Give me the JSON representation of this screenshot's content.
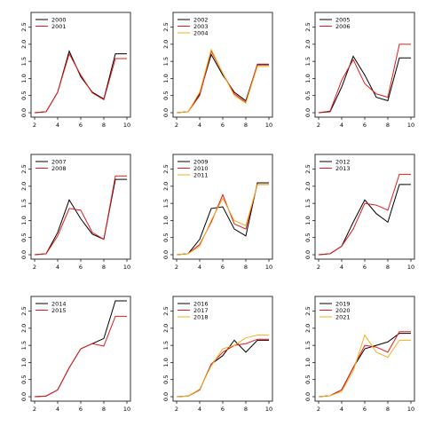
{
  "colors": {
    "black": "#000000",
    "red": "#e41a1c",
    "orange": "#f0b020",
    "axis": "#000000"
  },
  "chart_data": [
    {
      "type": "line",
      "xlim": [
        2,
        10
      ],
      "ylim": [
        0,
        2.8
      ],
      "xticks": [
        "2",
        "4",
        "6",
        "8",
        "10"
      ],
      "yticks": [
        "0.0",
        "0.5",
        "1.0",
        "1.5",
        "2.0",
        "2.5"
      ],
      "legend": "top-left",
      "x": [
        2,
        3,
        4,
        5,
        6,
        7,
        8,
        9,
        10
      ],
      "series": [
        {
          "name": "2000",
          "color": "black",
          "values": [
            0,
            0.03,
            0.6,
            1.8,
            1.05,
            0.6,
            0.4,
            1.72,
            1.72
          ]
        },
        {
          "name": "2001",
          "color": "red",
          "values": [
            0,
            0.03,
            0.6,
            1.72,
            1.1,
            0.58,
            0.38,
            1.58,
            1.58
          ]
        }
      ]
    },
    {
      "type": "line",
      "xlim": [
        2,
        10
      ],
      "ylim": [
        0,
        2.8
      ],
      "xticks": [
        "2",
        "4",
        "6",
        "8",
        "10"
      ],
      "yticks": [
        "0.0",
        "0.5",
        "1.0",
        "1.5",
        "2.0",
        "2.5"
      ],
      "legend": "top-left",
      "x": [
        2,
        3,
        4,
        5,
        6,
        7,
        8,
        9,
        10
      ],
      "series": [
        {
          "name": "2002",
          "color": "black",
          "values": [
            0,
            0.03,
            0.55,
            1.7,
            1.1,
            0.6,
            0.35,
            1.4,
            1.4
          ]
        },
        {
          "name": "2003",
          "color": "red",
          "values": [
            0,
            0.03,
            0.5,
            1.8,
            1.15,
            0.55,
            0.3,
            1.42,
            1.42
          ]
        },
        {
          "name": "2004",
          "color": "orange",
          "values": [
            0,
            0.03,
            0.6,
            1.85,
            1.15,
            0.5,
            0.28,
            1.35,
            1.35
          ]
        }
      ]
    },
    {
      "type": "line",
      "xlim": [
        2,
        10
      ],
      "ylim": [
        0,
        2.8
      ],
      "xticks": [
        "2",
        "4",
        "6",
        "8",
        "10"
      ],
      "yticks": [
        "0.0",
        "0.5",
        "1.0",
        "1.5",
        "2.0",
        "2.5"
      ],
      "legend": "top-left",
      "x": [
        2,
        3,
        4,
        5,
        6,
        7,
        8,
        9,
        10
      ],
      "series": [
        {
          "name": "2005",
          "color": "black",
          "values": [
            0,
            0.03,
            0.75,
            1.65,
            1.1,
            0.45,
            0.35,
            1.6,
            1.6
          ]
        },
        {
          "name": "2006",
          "color": "red",
          "values": [
            0,
            0.05,
            0.95,
            1.55,
            0.85,
            0.55,
            0.45,
            2.0,
            2.0
          ]
        }
      ]
    },
    {
      "type": "line",
      "xlim": [
        2,
        10
      ],
      "ylim": [
        0,
        2.8
      ],
      "xticks": [
        "2",
        "4",
        "6",
        "8",
        "10"
      ],
      "yticks": [
        "0.0",
        "0.5",
        "1.0",
        "1.5",
        "2.0",
        "2.5"
      ],
      "legend": "top-left",
      "x": [
        2,
        3,
        4,
        5,
        6,
        7,
        8,
        9,
        10
      ],
      "series": [
        {
          "name": "2007",
          "color": "black",
          "values": [
            0,
            0.03,
            0.65,
            1.6,
            1.05,
            0.6,
            0.45,
            2.2,
            2.2
          ]
        },
        {
          "name": "2008",
          "color": "red",
          "values": [
            0,
            0.03,
            0.55,
            1.35,
            1.3,
            0.65,
            0.45,
            2.3,
            2.3
          ]
        }
      ]
    },
    {
      "type": "line",
      "xlim": [
        2,
        10
      ],
      "ylim": [
        0,
        2.8
      ],
      "xticks": [
        "2",
        "4",
        "6",
        "8",
        "10"
      ],
      "yticks": [
        "0.0",
        "0.5",
        "1.0",
        "1.5",
        "2.0",
        "2.5"
      ],
      "legend": "top-left",
      "x": [
        2,
        3,
        4,
        5,
        6,
        7,
        8,
        9,
        10
      ],
      "series": [
        {
          "name": "2009",
          "color": "black",
          "values": [
            0,
            0.03,
            0.45,
            1.35,
            1.4,
            0.75,
            0.55,
            2.1,
            2.1
          ]
        },
        {
          "name": "2010",
          "color": "red",
          "values": [
            0,
            0.03,
            0.3,
            0.95,
            1.75,
            0.9,
            0.75,
            2.05,
            2.05
          ]
        },
        {
          "name": "2011",
          "color": "orange",
          "values": [
            0,
            0.03,
            0.25,
            1.0,
            1.65,
            1.0,
            0.85,
            2.05,
            2.05
          ]
        }
      ]
    },
    {
      "type": "line",
      "xlim": [
        2,
        10
      ],
      "ylim": [
        0,
        2.8
      ],
      "xticks": [
        "2",
        "4",
        "6",
        "8",
        "10"
      ],
      "yticks": [
        "0.0",
        "0.5",
        "1.0",
        "1.5",
        "2.0",
        "2.5"
      ],
      "legend": "top-left",
      "x": [
        2,
        3,
        4,
        5,
        6,
        7,
        8,
        9,
        10
      ],
      "series": [
        {
          "name": "2012",
          "color": "black",
          "values": [
            0,
            0.03,
            0.25,
            0.95,
            1.6,
            1.2,
            0.95,
            2.05,
            2.05
          ]
        },
        {
          "name": "2013",
          "color": "red",
          "values": [
            0,
            0.03,
            0.25,
            0.75,
            1.5,
            1.45,
            1.3,
            2.35,
            2.35
          ]
        }
      ]
    },
    {
      "type": "line",
      "xlim": [
        2,
        10
      ],
      "ylim": [
        0,
        2.8
      ],
      "xticks": [
        "2",
        "4",
        "6",
        "8",
        "10"
      ],
      "yticks": [
        "0.0",
        "0.5",
        "1.0",
        "1.5",
        "2.0",
        "2.5"
      ],
      "legend": "top-left",
      "x": [
        2,
        3,
        4,
        5,
        6,
        7,
        8,
        9,
        10
      ],
      "series": [
        {
          "name": "2014",
          "color": "black",
          "values": [
            0,
            0.02,
            0.2,
            0.85,
            1.4,
            1.55,
            1.7,
            2.8,
            2.8
          ]
        },
        {
          "name": "2015",
          "color": "red",
          "values": [
            0,
            0.02,
            0.2,
            0.85,
            1.4,
            1.55,
            1.48,
            2.35,
            2.35
          ]
        }
      ]
    },
    {
      "type": "line",
      "xlim": [
        2,
        10
      ],
      "ylim": [
        0,
        2.8
      ],
      "xticks": [
        "2",
        "4",
        "6",
        "8",
        "10"
      ],
      "yticks": [
        "0.0",
        "0.5",
        "1.0",
        "1.5",
        "2.0",
        "2.5"
      ],
      "legend": "top-left",
      "x": [
        2,
        3,
        4,
        5,
        6,
        7,
        8,
        9,
        10
      ],
      "series": [
        {
          "name": "2016",
          "color": "black",
          "values": [
            0,
            0.02,
            0.2,
            0.95,
            1.2,
            1.65,
            1.3,
            1.65,
            1.65
          ]
        },
        {
          "name": "2017",
          "color": "red",
          "values": [
            0,
            0.02,
            0.2,
            0.95,
            1.3,
            1.5,
            1.55,
            1.68,
            1.68
          ]
        },
        {
          "name": "2018",
          "color": "orange",
          "values": [
            0,
            0.02,
            0.22,
            0.9,
            1.4,
            1.5,
            1.72,
            1.8,
            1.8
          ]
        }
      ]
    },
    {
      "type": "line",
      "xlim": [
        2,
        10
      ],
      "ylim": [
        0,
        2.8
      ],
      "xticks": [
        "2",
        "4",
        "6",
        "8",
        "10"
      ],
      "yticks": [
        "0.0",
        "0.5",
        "1.0",
        "1.5",
        "2.0",
        "2.5"
      ],
      "legend": "top-left",
      "x": [
        2,
        3,
        4,
        5,
        6,
        7,
        8,
        9,
        10
      ],
      "series": [
        {
          "name": "2019",
          "color": "black",
          "values": [
            0,
            0.03,
            0.2,
            0.85,
            1.4,
            1.5,
            1.6,
            1.85,
            1.85
          ]
        },
        {
          "name": "2020",
          "color": "red",
          "values": [
            0,
            0.03,
            0.2,
            0.85,
            1.5,
            1.45,
            1.3,
            1.9,
            1.9
          ]
        },
        {
          "name": "2021",
          "color": "orange",
          "values": [
            0,
            0.03,
            0.15,
            0.75,
            1.8,
            1.3,
            1.15,
            1.65,
            1.65
          ]
        }
      ]
    }
  ]
}
